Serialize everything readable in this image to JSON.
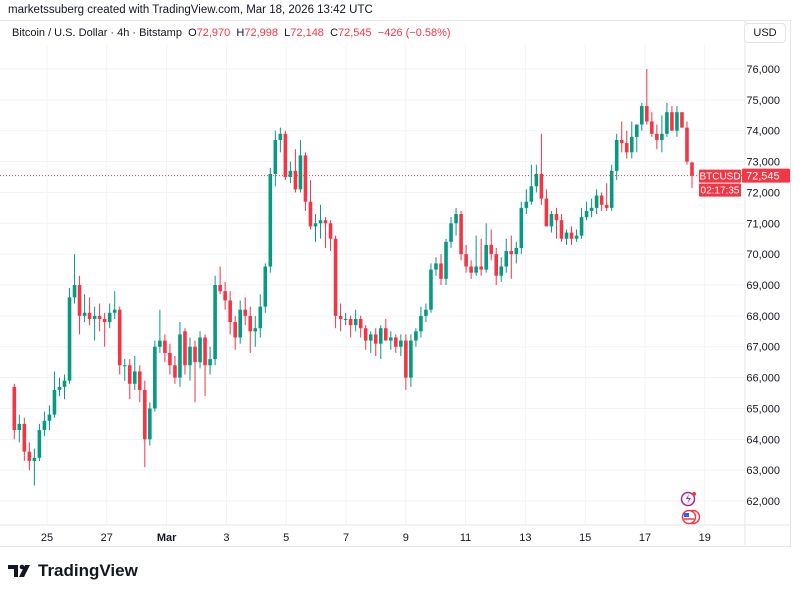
{
  "credit": "marketssuberg created with TradingView.com, Mar 18, 2026 13:42 UTC",
  "legend": {
    "symbol_desc": "Bitcoin / U.S. Dollar · 4h · Bitstamp",
    "o_label": "O",
    "o": "72,970",
    "h_label": "H",
    "h": "72,998",
    "l_label": "L",
    "l": "72,148",
    "c_label": "C",
    "c": "72,545",
    "change": "−426 (−0.58%)"
  },
  "currency_button": "USD",
  "price_tag": {
    "symbol": "BTCUSD",
    "price": "72,545",
    "countdown": "02:17:35"
  },
  "brand": "TradingView",
  "colors": {
    "up": "#089981",
    "down": "#f23645",
    "grid": "#f0f3fa",
    "text": "#131722"
  },
  "icons": [
    "lightning-event-icon",
    "us-flag-event-icon",
    "tradingview-logo-icon"
  ],
  "chart_data": {
    "type": "candlestick",
    "interval": "4h",
    "ylim": [
      61500,
      76700
    ],
    "y_ticks": [
      "62,000",
      "63,000",
      "64,000",
      "65,000",
      "66,000",
      "67,000",
      "68,000",
      "69,000",
      "70,000",
      "71,000",
      "72,000",
      "73,000",
      "74,000",
      "75,000",
      "76,000"
    ],
    "x_ticks": [
      "25",
      "27",
      "Mar",
      "3",
      "5",
      "7",
      "9",
      "11",
      "13",
      "15",
      "17",
      "19"
    ],
    "last_price": 72545,
    "grid": true,
    "ohlc": [
      [
        65700,
        65800,
        64000,
        64300
      ],
      [
        64300,
        64800,
        63900,
        64500
      ],
      [
        64500,
        64700,
        63300,
        63600
      ],
      [
        63600,
        63900,
        63000,
        63300
      ],
      [
        63300,
        63700,
        62500,
        63400
      ],
      [
        63400,
        64500,
        63300,
        64300
      ],
      [
        64300,
        64900,
        64100,
        64600
      ],
      [
        64600,
        65100,
        64300,
        64800
      ],
      [
        64800,
        66200,
        64700,
        65600
      ],
      [
        65600,
        66000,
        65400,
        65700
      ],
      [
        65700,
        66100,
        65300,
        65900
      ],
      [
        65900,
        68900,
        65800,
        68600
      ],
      [
        68600,
        70000,
        68400,
        69000
      ],
      [
        69000,
        69300,
        67400,
        68000
      ],
      [
        68000,
        68700,
        67800,
        68100
      ],
      [
        68100,
        68600,
        67700,
        67900
      ],
      [
        67900,
        68300,
        67200,
        68000
      ],
      [
        68000,
        68400,
        67500,
        67900
      ],
      [
        67900,
        68100,
        67000,
        67800
      ],
      [
        67800,
        68400,
        67600,
        68100
      ],
      [
        68100,
        68800,
        67900,
        68200
      ],
      [
        68200,
        68300,
        66100,
        66400
      ],
      [
        66400,
        66600,
        65900,
        66400
      ],
      [
        66400,
        66600,
        65300,
        65800
      ],
      [
        65800,
        66700,
        65600,
        66200
      ],
      [
        66200,
        66400,
        65200,
        65600
      ],
      [
        65600,
        65900,
        63100,
        64000
      ],
      [
        64000,
        65200,
        63800,
        65000
      ],
      [
        65000,
        67200,
        64900,
        67000
      ],
      [
        67000,
        68200,
        66800,
        67200
      ],
      [
        67200,
        67400,
        66500,
        66800
      ],
      [
        66800,
        67100,
        66100,
        66400
      ],
      [
        66400,
        66700,
        65800,
        66000
      ],
      [
        66000,
        67800,
        65700,
        67400
      ],
      [
        67500,
        67600,
        66100,
        66400
      ],
      [
        66400,
        67300,
        65900,
        67000
      ],
      [
        67000,
        67200,
        65200,
        66500
      ],
      [
        66500,
        67500,
        66300,
        67300
      ],
      [
        67300,
        67400,
        65400,
        66400
      ],
      [
        66400,
        67000,
        66100,
        66600
      ],
      [
        66600,
        69300,
        66400,
        69000
      ],
      [
        69000,
        69600,
        68700,
        68800
      ],
      [
        68800,
        69100,
        68200,
        68500
      ],
      [
        68500,
        68800,
        67400,
        67800
      ],
      [
        67800,
        68000,
        66900,
        67300
      ],
      [
        67300,
        68500,
        67100,
        68200
      ],
      [
        68200,
        68600,
        67700,
        68000
      ],
      [
        68000,
        68300,
        66800,
        67500
      ],
      [
        67500,
        68000,
        67000,
        67600
      ],
      [
        67600,
        68700,
        67300,
        68300
      ],
      [
        68300,
        69700,
        68100,
        69600
      ],
      [
        69600,
        72800,
        69400,
        72600
      ],
      [
        72600,
        74000,
        72200,
        73700
      ],
      [
        73700,
        74100,
        73300,
        73900
      ],
      [
        73900,
        74000,
        72400,
        72500
      ],
      [
        72500,
        73000,
        72300,
        72700
      ],
      [
        72700,
        73400,
        72000,
        72100
      ],
      [
        72100,
        73700,
        72000,
        73200
      ],
      [
        73200,
        73300,
        71400,
        71700
      ],
      [
        71700,
        72400,
        70800,
        70900
      ],
      [
        70900,
        71300,
        70400,
        71000
      ],
      [
        71000,
        71600,
        70500,
        71100
      ],
      [
        71100,
        71200,
        70200,
        71000
      ],
      [
        71000,
        71100,
        70100,
        70500
      ],
      [
        70500,
        70600,
        67600,
        68000
      ],
      [
        68000,
        68400,
        67500,
        67900
      ],
      [
        67900,
        68100,
        67700,
        67900
      ],
      [
        67900,
        68000,
        67300,
        67700
      ],
      [
        67700,
        68200,
        67500,
        67900
      ],
      [
        67900,
        68000,
        67300,
        67600
      ],
      [
        67600,
        67700,
        66900,
        67200
      ],
      [
        67200,
        67500,
        66800,
        67400
      ],
      [
        67400,
        67600,
        66700,
        67100
      ],
      [
        67100,
        67700,
        66600,
        67600
      ],
      [
        67600,
        67900,
        67200,
        67200
      ],
      [
        67200,
        67500,
        66900,
        67300
      ],
      [
        67300,
        67400,
        66800,
        67000
      ],
      [
        67000,
        67400,
        66700,
        67200
      ],
      [
        67200,
        67400,
        65600,
        66000
      ],
      [
        66000,
        67400,
        65700,
        67200
      ],
      [
        67200,
        67600,
        67000,
        67500
      ],
      [
        67500,
        68300,
        67300,
        68000
      ],
      [
        68000,
        68400,
        67800,
        68200
      ],
      [
        68200,
        69700,
        68100,
        69500
      ],
      [
        69500,
        69900,
        69300,
        69700
      ],
      [
        69700,
        70000,
        69000,
        69200
      ],
      [
        69200,
        70500,
        69000,
        70400
      ],
      [
        70400,
        71200,
        70200,
        71000
      ],
      [
        71000,
        71500,
        70600,
        71300
      ],
      [
        71300,
        71400,
        69800,
        70000
      ],
      [
        70000,
        70300,
        69400,
        69600
      ],
      [
        69600,
        69800,
        69200,
        69400
      ],
      [
        69400,
        70600,
        69300,
        69600
      ],
      [
        69600,
        70500,
        69300,
        69500
      ],
      [
        69500,
        71000,
        69400,
        70300
      ],
      [
        70300,
        70800,
        69800,
        70000
      ],
      [
        70000,
        70200,
        69000,
        69300
      ],
      [
        69300,
        69900,
        69100,
        69600
      ],
      [
        69600,
        70500,
        69400,
        70100
      ],
      [
        70100,
        70600,
        69200,
        70000
      ],
      [
        70000,
        70400,
        69700,
        70200
      ],
      [
        70200,
        71700,
        70000,
        71500
      ],
      [
        71500,
        72100,
        71300,
        71700
      ],
      [
        71700,
        72900,
        71600,
        72200
      ],
      [
        72200,
        72900,
        72000,
        72600
      ],
      [
        72600,
        73900,
        71600,
        71800
      ],
      [
        71800,
        72100,
        70900,
        70900
      ],
      [
        70900,
        71400,
        70700,
        71300
      ],
      [
        71300,
        71500,
        70500,
        71100
      ],
      [
        71100,
        71300,
        70400,
        70500
      ],
      [
        70500,
        70800,
        70300,
        70700
      ],
      [
        70700,
        70900,
        70300,
        70500
      ],
      [
        70500,
        70800,
        70400,
        70600
      ],
      [
        70600,
        71500,
        70500,
        71200
      ],
      [
        71200,
        71700,
        71100,
        71400
      ],
      [
        71400,
        71800,
        71200,
        71500
      ],
      [
        71500,
        72100,
        71300,
        71900
      ],
      [
        71900,
        72000,
        71400,
        71600
      ],
      [
        71600,
        72300,
        71400,
        71500
      ],
      [
        71500,
        72900,
        71400,
        72700
      ],
      [
        72700,
        73900,
        72400,
        73700
      ],
      [
        73700,
        74300,
        73300,
        73600
      ],
      [
        73600,
        74000,
        73100,
        73300
      ],
      [
        73300,
        74300,
        73100,
        73800
      ],
      [
        73800,
        74200,
        73300,
        74200
      ],
      [
        74200,
        74900,
        74000,
        74800
      ],
      [
        74800,
        76000,
        74200,
        74300
      ],
      [
        74300,
        74600,
        73800,
        73900
      ],
      [
        73900,
        74200,
        73400,
        73700
      ],
      [
        73700,
        74500,
        73300,
        73900
      ],
      [
        73900,
        74900,
        73800,
        74600
      ],
      [
        74600,
        74800,
        74000,
        74000
      ],
      [
        74000,
        74800,
        73800,
        74600
      ],
      [
        74600,
        74600,
        74100,
        74100
      ],
      [
        74100,
        74300,
        72900,
        73000
      ],
      [
        72970,
        72998,
        72148,
        72545
      ]
    ]
  }
}
